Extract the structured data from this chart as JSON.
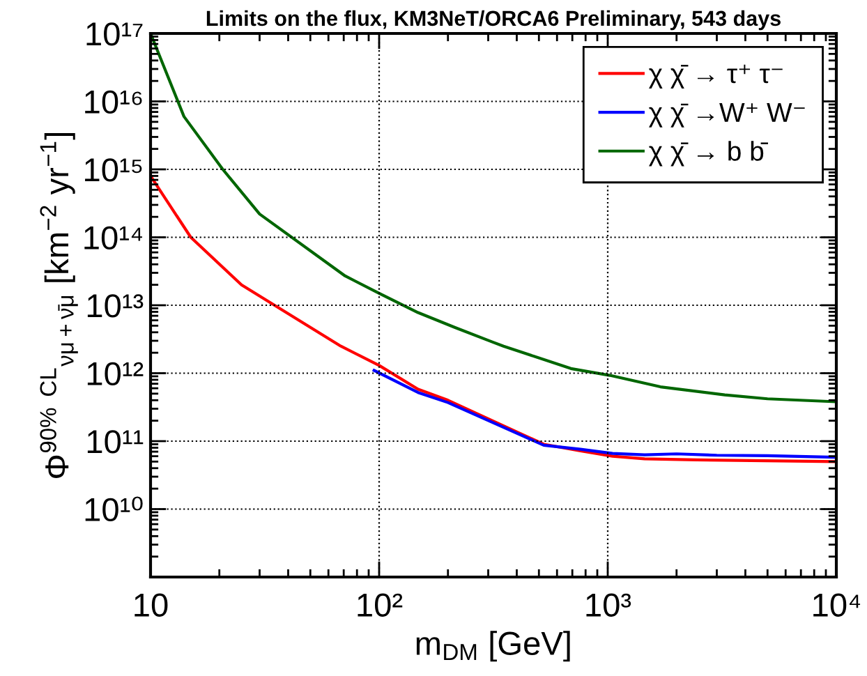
{
  "chart_data": {
    "type": "line",
    "title": "Limits on the flux, KM3NeT/ORCA6 Preliminary, 543 days",
    "xlabel": "m$_{DM}$ [GeV]",
    "ylabel": "Φ$^{90%}$ $^{CL}$$_{νμ+ν̄μ}$ [km$^{−2}$ yr$^{−1}$]",
    "log": "xy",
    "xlim": [
      10,
      10000
    ],
    "ylim": [
      1000000000.0,
      1e+17
    ],
    "xticks": [
      10,
      {
        "value": 100,
        "label": "10²"
      },
      {
        "value": 1000,
        "label": "10³"
      },
      {
        "value": 10000,
        "label": "10⁴"
      }
    ],
    "yticks": [
      {
        "value": 10000000000.0,
        "label": "10¹⁰"
      },
      {
        "value": 100000000000.0,
        "label": "10¹¹"
      },
      {
        "value": 1000000000000.0,
        "label": "10¹²"
      },
      {
        "value": 10000000000000.0,
        "label": "10¹³"
      },
      {
        "value": 100000000000000.0,
        "label": "10¹⁴"
      },
      {
        "value": 1000000000000000.0,
        "label": "10¹⁵"
      },
      {
        "value": 1e+16,
        "label": "10¹⁶"
      },
      {
        "value": 1e+17,
        "label": "10¹⁷"
      }
    ],
    "grid": true,
    "legend": "top right",
    "line_style": "solid",
    "marker": "none",
    "series": [
      {
        "name": "χ χ̄ → τ⁺ τ⁻",
        "color": "#ff0000",
        "x": [
          10,
          15,
          25,
          68,
          100,
          148,
          200,
          436,
          525,
          760,
          1050,
          1450,
          2450,
          10000
        ],
        "values": [
          800000000000000.0,
          100000000000000.0,
          20000000000000.0,
          2500000000000.0,
          1300000000000.0,
          580000000000.0,
          400000000000.0,
          120000000000.0,
          90000000000.0,
          72000000000.0,
          60000000000.0,
          55000000000.0,
          53000000000.0,
          50000000000.0
        ]
      },
      {
        "name": "χ χ̄ →W⁺ W⁻",
        "color": "#0000ff",
        "x": [
          95,
          148,
          200,
          436,
          525,
          760,
          1050,
          1450,
          2000,
          3000,
          5000,
          10000
        ],
        "values": [
          1100000000000.0,
          520000000000.0,
          370000000000.0,
          115000000000.0,
          87000000000.0,
          76000000000.0,
          66000000000.0,
          63000000000.0,
          65000000000.0,
          62000000000.0,
          61000000000.0,
          58000000000.0
        ]
      },
      {
        "name": "χ χ̄ → b b̄",
        "color": "#006600",
        "x": [
          10,
          14,
          20.7,
          30,
          71,
          100,
          148,
          215,
          311,
          350,
          690,
          1020,
          1700,
          3250,
          5000,
          10000
        ],
        "values": [
          1e+17,
          6000000000000000.0,
          1000000000000000.0,
          220000000000000.0,
          27000000000000.0,
          15000000000000.0,
          7800000000000.0,
          4700000000000.0,
          2900000000000.0,
          2500000000000.0,
          1170000000000.0,
          930000000000.0,
          630000000000.0,
          480000000000.0,
          420000000000.0,
          380000000000.0
        ]
      }
    ]
  }
}
